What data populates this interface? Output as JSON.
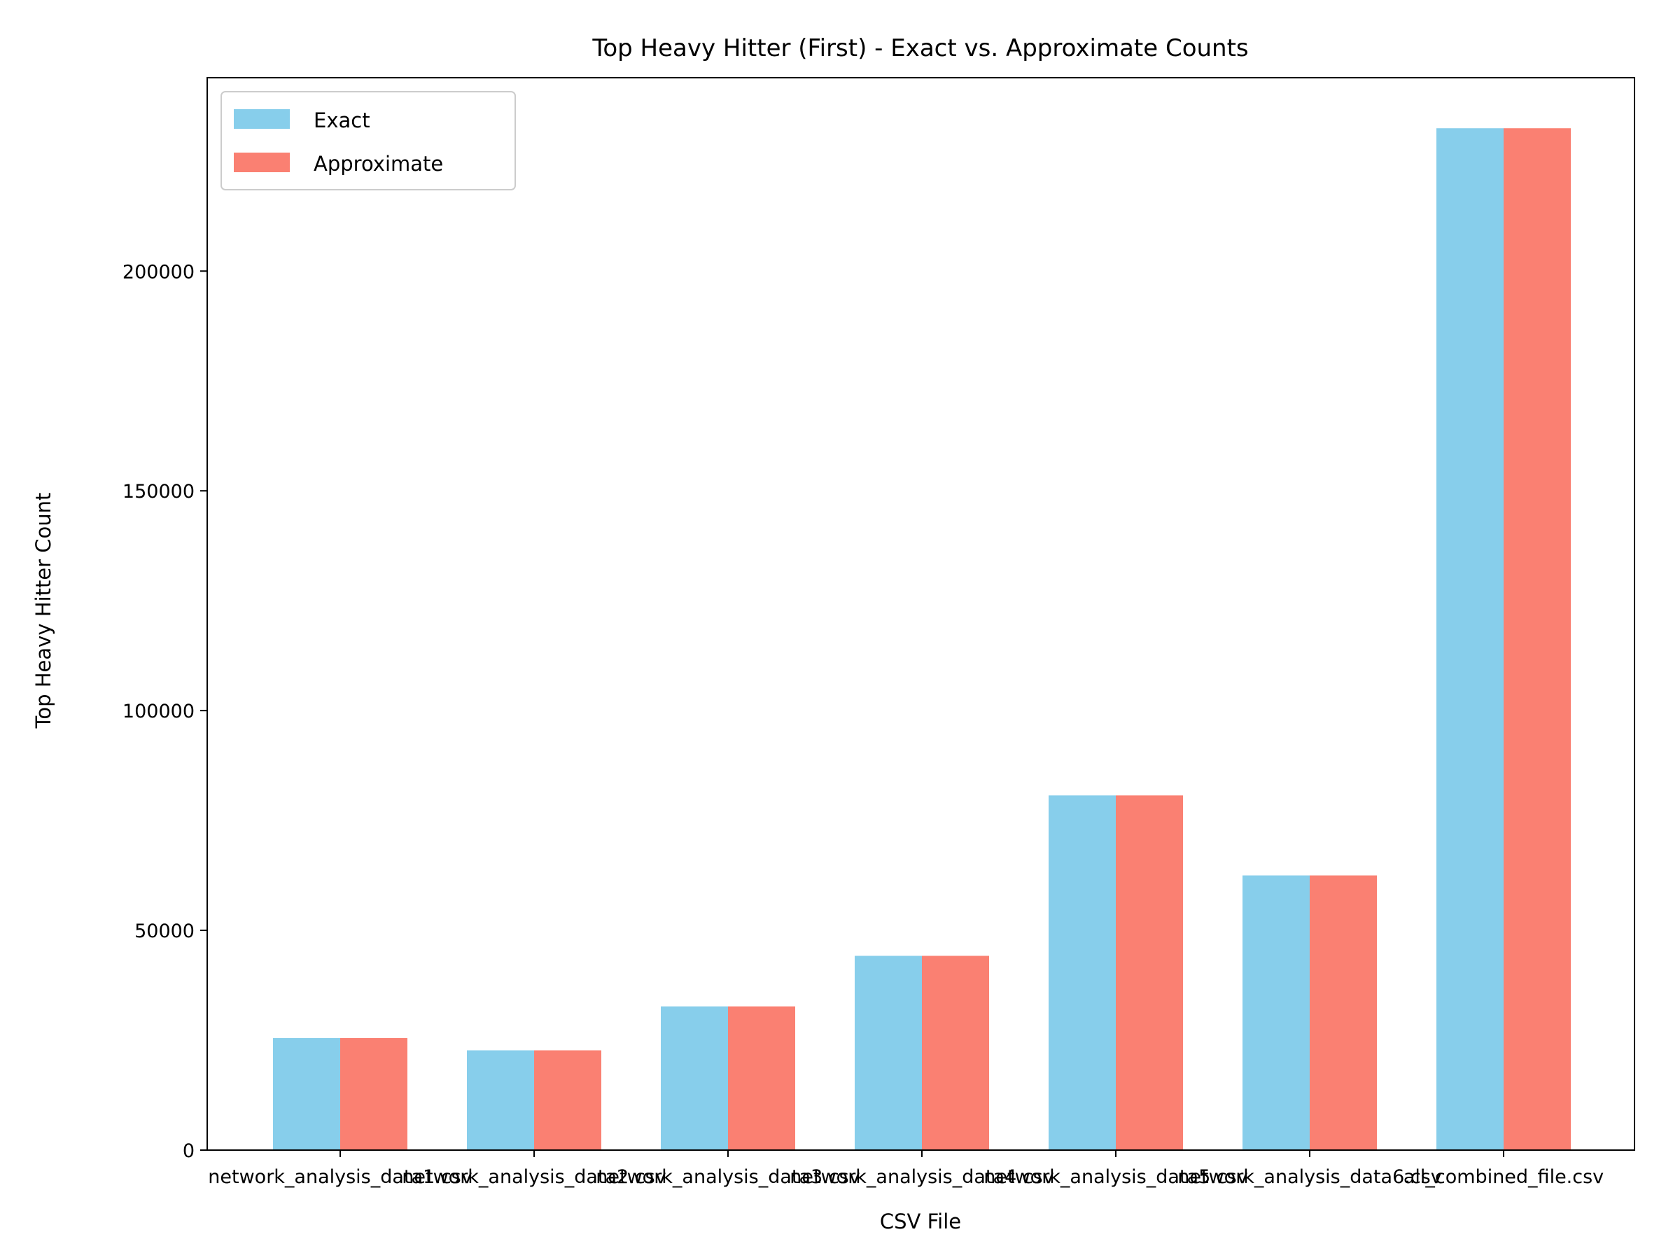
{
  "chart_data": {
    "type": "bar",
    "title": "Top Heavy Hitter (First) - Exact vs. Approximate Counts",
    "xlabel": "CSV File",
    "ylabel": "Top Heavy Hitter Count",
    "categories": [
      "network_analysis_data1.csv",
      "network_analysis_data2.csv",
      "network_analysis_data3.csv",
      "network_analysis_data4.csv",
      "network_analysis_data5.csv",
      "network_analysis_data6.csv",
      "all_combined_file.csv"
    ],
    "series": [
      {
        "name": "Exact",
        "color": "#87ceeb",
        "values": [
          25500,
          22700,
          32700,
          44200,
          80700,
          62500,
          232500
        ]
      },
      {
        "name": "Approximate",
        "color": "#fa8072",
        "values": [
          25500,
          22700,
          32700,
          44200,
          80700,
          62500,
          232500
        ]
      }
    ],
    "yticks": [
      0,
      50000,
      100000,
      150000,
      200000
    ],
    "ylim": [
      0,
      244000
    ],
    "legend_position": "upper-left",
    "grid": false
  }
}
